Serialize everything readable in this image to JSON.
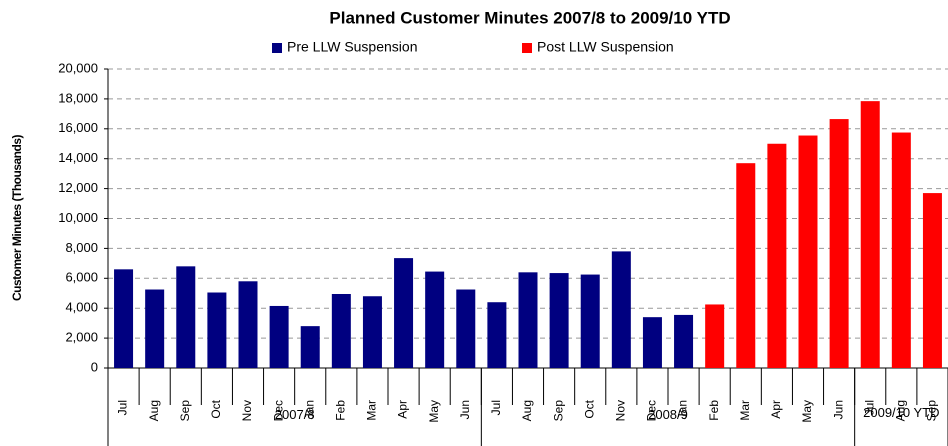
{
  "chart_data": {
    "type": "bar",
    "title": "Planned Customer Minutes 2007/8 to 2009/10 YTD",
    "y_label": "Customer Minutes (Thousands)",
    "categories": [
      "Jul",
      "Aug",
      "Sep",
      "Oct",
      "Nov",
      "Dec",
      "Jan",
      "Feb",
      "Mar",
      "Apr",
      "May",
      "Jun",
      "Jul",
      "Aug",
      "Sep",
      "Oct",
      "Nov",
      "Dec",
      "Jan",
      "Feb",
      "Mar",
      "Apr",
      "May",
      "Jun",
      "Jul",
      "Aug",
      "Sep"
    ],
    "groups": [
      {
        "label": "2007/8",
        "size": 12
      },
      {
        "label": "2008/9",
        "size": 12
      },
      {
        "label": "2009/10 YTD",
        "size": 3
      }
    ],
    "series": [
      {
        "name": "Pre LLW Suspension",
        "color": "#000080",
        "values": [
          6600,
          5250,
          6800,
          5050,
          5800,
          4150,
          2800,
          4950,
          4800,
          7350,
          6450,
          5250,
          4400,
          6400,
          6350,
          6250,
          7800,
          3400,
          3550,
          null,
          null,
          null,
          null,
          null,
          null,
          null,
          null
        ]
      },
      {
        "name": "Post LLW Suspension",
        "color": "#ff0000",
        "values": [
          null,
          null,
          null,
          null,
          null,
          null,
          null,
          null,
          null,
          null,
          null,
          null,
          null,
          null,
          null,
          null,
          null,
          null,
          null,
          4250,
          13700,
          15000,
          15550,
          16650,
          17850,
          15750,
          11700
        ]
      }
    ],
    "ylim": [
      0,
      20000
    ],
    "yticks": [
      0,
      {
        "value": 2000,
        "label": "2,000"
      },
      {
        "value": 4000,
        "label": "4,000"
      },
      {
        "value": 6000,
        "label": "6,000"
      },
      {
        "value": 8000,
        "label": "8,000"
      },
      {
        "value": 10000,
        "label": "10,000"
      },
      {
        "value": 12000,
        "label": "12,000"
      },
      {
        "value": 14000,
        "label": "14,000"
      },
      {
        "value": 16000,
        "label": "16,000"
      },
      {
        "value": 18000,
        "label": "18,000"
      },
      {
        "value": 20000,
        "label": "20,000"
      }
    ],
    "grid": true
  }
}
